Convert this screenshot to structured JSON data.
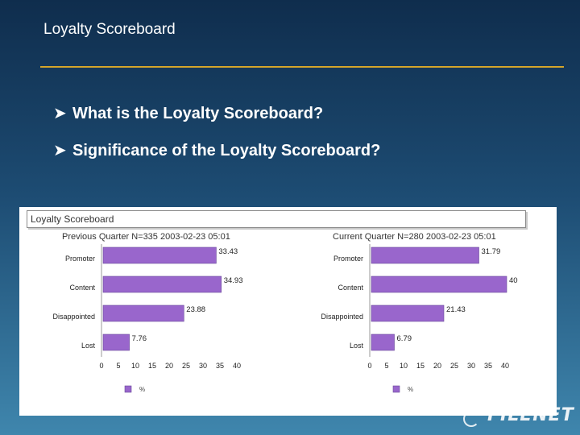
{
  "slide": {
    "title": "Loyalty Scoreboard",
    "bullets": [
      "What is the Loyalty Scoreboard?",
      "Significance of the Loyalty Scoreboard?"
    ],
    "bullet_icon": "arrow-bullet-icon",
    "logo_text": "FILENET"
  },
  "panel": {
    "header": "Loyalty Scoreboard"
  },
  "chart_data": [
    {
      "type": "bar",
      "orientation": "horizontal",
      "title": "Previous Quarter N=335 2003-02-23 05:01",
      "categories": [
        "Promoter",
        "Content",
        "Disappointed",
        "Lost"
      ],
      "values": [
        33.43,
        34.93,
        23.88,
        7.76
      ],
      "value_labels": [
        "33.43",
        "34.93",
        "23.88",
        "7.76"
      ],
      "xlim": [
        0,
        40
      ],
      "xticks": [
        "0",
        "5",
        "10",
        "15",
        "20",
        "25",
        "30",
        "35",
        "40"
      ],
      "legend_label": "%",
      "bar_color": "#9966cc"
    },
    {
      "type": "bar",
      "orientation": "horizontal",
      "title": "Current Quarter N=280 2003-02-23 05:01",
      "categories": [
        "Promoter",
        "Content",
        "Disappointed",
        "Lost"
      ],
      "values": [
        31.79,
        40,
        21.43,
        6.79
      ],
      "value_labels": [
        "31.79",
        "40",
        "21.43",
        "6.79"
      ],
      "xlim": [
        0,
        40
      ],
      "xticks": [
        "0",
        "5",
        "10",
        "15",
        "20",
        "25",
        "30",
        "35",
        "40"
      ],
      "legend_label": "%",
      "bar_color": "#9966cc"
    }
  ]
}
